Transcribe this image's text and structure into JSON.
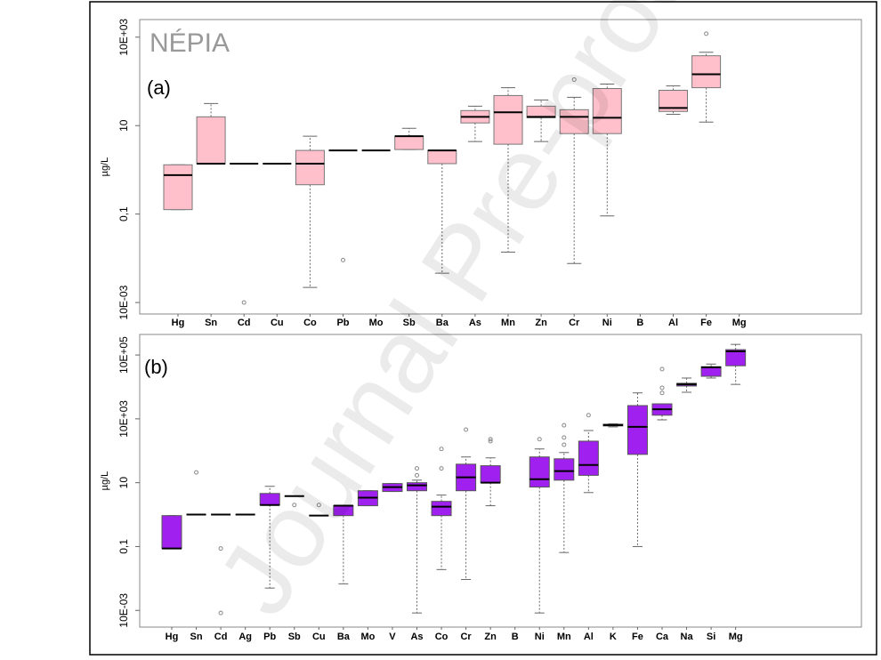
{
  "watermark": "Journal Pre-proof",
  "chart_data": [
    {
      "type": "box",
      "title": "NÉPIA",
      "label": "(a)",
      "y_label": "µg/L",
      "log_y": true,
      "color": "#ffc0cb",
      "edge_color": "#777777",
      "ylim": [
        0.00055,
        2500
      ],
      "yticks": [
        {
          "value": 1000,
          "label": "10E+03"
        },
        10,
        {
          "value": 0.1,
          "label": "0,1"
        },
        {
          "value": 0.001,
          "label": "10E-03"
        }
      ],
      "categories": [
        "Hg",
        "Sn",
        "Cd",
        "Cu",
        "Co",
        "Pb",
        "Mo",
        "Sb",
        "Ba",
        "As",
        "Mn",
        "Zn",
        "Cr",
        "Ni",
        "B",
        "Al",
        "Fe",
        "Mg"
      ],
      "boxes": [
        {
          "min": 0.126,
          "q1": 0.126,
          "median": 0.76,
          "q3": 1.3,
          "max": 1.3
        },
        {
          "min": 1.38,
          "q1": 1.38,
          "median": 1.38,
          "q3": 15.8,
          "max": 31.6
        },
        {
          "min": 1.38,
          "q1": 1.38,
          "median": 1.38,
          "q3": 1.38,
          "max": 1.38,
          "outliers": [
            0.001
          ]
        },
        {
          "min": 1.38,
          "q1": 1.38,
          "median": 1.38,
          "q3": 1.38,
          "max": 1.38
        },
        {
          "min": 0.0022,
          "q1": 0.46,
          "median": 1.38,
          "q3": 2.75,
          "max": 5.75
        },
        {
          "min": 2.75,
          "q1": 2.75,
          "median": 2.75,
          "q3": 2.75,
          "max": 2.75,
          "outliers": [
            0.0091
          ]
        },
        {
          "min": 2.75,
          "q1": 2.75,
          "median": 2.75,
          "q3": 2.75,
          "max": 2.75
        },
        {
          "min": 2.88,
          "q1": 2.88,
          "median": 5.75,
          "q3": 5.75,
          "max": 8.7
        },
        {
          "min": 0.0046,
          "q1": 1.38,
          "median": 2.75,
          "q3": 2.75,
          "max": 2.75
        },
        {
          "min": 4.37,
          "q1": 11.5,
          "median": 15.8,
          "q3": 21.9,
          "max": 27.5
        },
        {
          "min": 0.0138,
          "q1": 3.8,
          "median": 20,
          "q3": 47.9,
          "max": 72
        },
        {
          "min": 4.37,
          "q1": 15.1,
          "median": 15.8,
          "q3": 27.5,
          "max": 38
        },
        {
          "min": 0.0076,
          "q1": 6.6,
          "median": 15.8,
          "q3": 22.9,
          "max": 43.7,
          "outliers": [
            110
          ]
        },
        {
          "min": 0.091,
          "q1": 6.6,
          "median": 15.1,
          "q3": 69,
          "max": 87
        },
        null,
        {
          "min": 18,
          "q1": 20.9,
          "median": 25,
          "q3": 63,
          "max": 79
        },
        {
          "min": 12,
          "q1": 72,
          "median": 145,
          "q3": 380,
          "max": 457,
          "outliers": [
            1200
          ]
        },
        null
      ]
    },
    {
      "type": "box",
      "label": "(b)",
      "y_label": "µg/L",
      "log_y": true,
      "color": "#a020f0",
      "edge_color": "#555555",
      "ylim": [
        0.0003,
        440000
      ],
      "yticks": [
        {
          "value": 100000,
          "label": "10E+05"
        },
        {
          "value": 1000,
          "label": "10E+03"
        },
        10,
        {
          "value": 0.1,
          "label": "0,1"
        },
        {
          "value": 0.001,
          "label": "10E-03"
        }
      ],
      "categories": [
        "Hg",
        "Sn",
        "Cd",
        "Ag",
        "Pb",
        "Sb",
        "Cu",
        "Ba",
        "Mo",
        "V",
        "As",
        "Co",
        "Cr",
        "Zn",
        "B",
        "Ni",
        "Mn",
        "Al",
        "K",
        "Fe",
        "Ca",
        "Na",
        "Si",
        "Mg"
      ],
      "boxes": [
        {
          "min": 0.087,
          "q1": 0.087,
          "median": 0.087,
          "q3": 0.93,
          "max": 0.93
        },
        {
          "min": 1,
          "q1": 1,
          "median": 1,
          "q3": 1,
          "max": 1,
          "outliers": [
            21
          ]
        },
        {
          "min": 1,
          "q1": 1,
          "median": 1,
          "q3": 1,
          "max": 1,
          "outliers": [
            0.087,
            0.00083
          ]
        },
        {
          "min": 1,
          "q1": 1,
          "median": 1,
          "q3": 1,
          "max": 1
        },
        {
          "min": 0.005,
          "q1": 2.0,
          "median": 2.0,
          "q3": 4.6,
          "max": 7.7
        },
        {
          "min": 3.8,
          "q1": 3.8,
          "median": 3.8,
          "q3": 3.8,
          "max": 3.8,
          "outliers": [
            2.0
          ]
        },
        {
          "min": 0.93,
          "q1": 0.93,
          "median": 0.93,
          "q3": 0.93,
          "max": 0.93,
          "outliers": [
            2.0
          ]
        },
        {
          "min": 0.0068,
          "q1": 0.93,
          "median": 1.9,
          "q3": 1.9,
          "max": 1.9
        },
        {
          "min": 1.9,
          "q1": 1.9,
          "median": 3.4,
          "q3": 5.6,
          "max": 5.6
        },
        {
          "min": 5.3,
          "q1": 5.3,
          "median": 7.3,
          "q3": 9.4,
          "max": 9.4
        },
        {
          "min": 0.00083,
          "q1": 5.6,
          "median": 8.3,
          "q3": 10,
          "max": 12,
          "outliers": [
            28,
            17
          ]
        },
        {
          "min": 0.019,
          "q1": 0.93,
          "median": 1.78,
          "q3": 2.6,
          "max": 4.1,
          "outliers": [
            114,
            28
          ]
        },
        {
          "min": 0.0093,
          "q1": 5.6,
          "median": 14.7,
          "q3": 38,
          "max": 64,
          "outliers": [
            460
          ]
        },
        {
          "min": 1.9,
          "q1": 10,
          "median": 10,
          "q3": 34,
          "max": 60,
          "outliers": [
            230,
            200
          ]
        },
        null,
        {
          "min": 0.00083,
          "q1": 7.3,
          "median": 12.9,
          "q3": 64,
          "max": 114,
          "outliers": [
            230
          ]
        },
        {
          "min": 0.065,
          "q1": 12,
          "median": 23,
          "q3": 56,
          "max": 88,
          "outliers": [
            630,
            260,
            155
          ]
        },
        {
          "min": 4.9,
          "q1": 17,
          "median": 36,
          "q3": 200,
          "max": 430,
          "outliers": [
            1300
          ]
        },
        {
          "min": 560,
          "q1": 600,
          "median": 640,
          "q3": 680,
          "max": 700
        },
        {
          "min": 0.1,
          "q1": 77,
          "median": 560,
          "q3": 2600,
          "max": 6500
        },
        {
          "min": 930,
          "q1": 1300,
          "median": 2000,
          "q3": 2950,
          "max": 2950,
          "outliers": [
            36000,
            9400,
            6500
          ]
        },
        {
          "min": 6800,
          "q1": 10700,
          "median": 12000,
          "q3": 13000,
          "max": 19000
        },
        {
          "min": 19000,
          "q1": 21500,
          "median": 41000,
          "q3": 43000,
          "max": 52000
        },
        {
          "min": 12000,
          "q1": 46000,
          "median": 130000,
          "q3": 147000,
          "max": 215000
        }
      ]
    }
  ]
}
